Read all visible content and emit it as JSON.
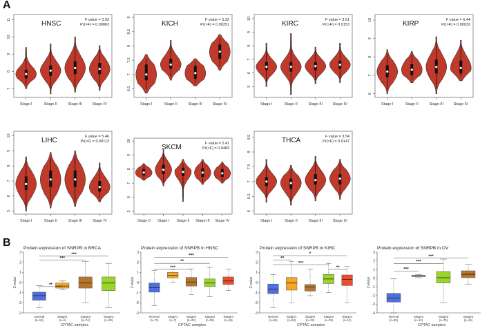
{
  "figure": {
    "label_a": "A",
    "label_b": "B"
  },
  "chart_data": [
    {
      "id": "hnsc",
      "type": "violin",
      "title": "HNSC",
      "f_text": "F value = 3.93",
      "p_text": "Pr(>F) = 0.00863",
      "categories": [
        "Stage I",
        "Stage II",
        "Stage III",
        "Stage IV"
      ],
      "ylim": [
        6.5,
        11.3
      ],
      "yticks": [
        7,
        8,
        9,
        10,
        11
      ],
      "color": "#c0392b",
      "violins": [
        {
          "median": 7.85,
          "q1": 7.6,
          "q3": 8.1,
          "min": 7.0,
          "max": 9.4
        },
        {
          "median": 8.05,
          "q1": 7.75,
          "q3": 8.35,
          "min": 6.7,
          "max": 9.6
        },
        {
          "median": 8.2,
          "q1": 7.85,
          "q3": 8.6,
          "min": 6.8,
          "max": 10.0
        },
        {
          "median": 8.15,
          "q1": 7.85,
          "q3": 8.5,
          "min": 6.9,
          "max": 9.5
        }
      ]
    },
    {
      "id": "kich",
      "type": "violin",
      "title": "KICH",
      "f_text": "F value = 5.32",
      "p_text": "Pr(>F) = 0.00251",
      "categories": [
        "Stage I",
        "Stage II",
        "Stage III",
        "Stage IV"
      ],
      "ylim": [
        6.2,
        9.1
      ],
      "yticks": [
        6.5,
        7.0,
        7.5,
        8.0,
        8.5,
        9.0
      ],
      "color": "#c0392b",
      "violins": [
        {
          "median": 7.0,
          "q1": 6.8,
          "q3": 7.35,
          "min": 6.35,
          "max": 7.7
        },
        {
          "median": 7.35,
          "q1": 7.2,
          "q3": 7.55,
          "min": 6.8,
          "max": 8.2
        },
        {
          "median": 7.05,
          "q1": 6.85,
          "q3": 7.3,
          "min": 6.6,
          "max": 7.55
        },
        {
          "median": 7.8,
          "q1": 7.55,
          "q3": 8.05,
          "min": 7.15,
          "max": 8.4
        }
      ]
    },
    {
      "id": "kirc",
      "type": "violin",
      "title": "KIRC",
      "f_text": "F value = 3.51",
      "p_text": "Pr(>F) = 0.0153",
      "categories": [
        "Stage I",
        "Stage II",
        "Stage III",
        "Stage IV"
      ],
      "ylim": [
        4.2,
        10.3
      ],
      "yticks": [
        5,
        6,
        7,
        8,
        9,
        10
      ],
      "color": "#c0392b",
      "violins": [
        {
          "median": 6.45,
          "q1": 6.2,
          "q3": 6.8,
          "min": 5.0,
          "max": 8.2
        },
        {
          "median": 6.45,
          "q1": 6.1,
          "q3": 6.8,
          "min": 4.4,
          "max": 8.9
        },
        {
          "median": 6.5,
          "q1": 6.2,
          "q3": 6.8,
          "min": 5.2,
          "max": 7.9
        },
        {
          "median": 6.6,
          "q1": 6.3,
          "q3": 6.9,
          "min": 5.3,
          "max": 8.2
        }
      ]
    },
    {
      "id": "kirp",
      "type": "violin",
      "title": "KIRP",
      "f_text": "F value = 6.44",
      "p_text": "Pr(>F) = 0.00032",
      "categories": [
        "Stage I",
        "Stage II",
        "Stage III",
        "Stage IV"
      ],
      "ylim": [
        5.8,
        10.3
      ],
      "yticks": [
        6,
        7,
        8,
        9,
        10
      ],
      "color": "#c0392b",
      "violins": [
        {
          "median": 7.2,
          "q1": 6.9,
          "q3": 7.55,
          "min": 6.0,
          "max": 8.4
        },
        {
          "median": 7.3,
          "q1": 7.0,
          "q3": 7.6,
          "min": 6.6,
          "max": 8.3
        },
        {
          "median": 7.45,
          "q1": 7.1,
          "q3": 7.85,
          "min": 6.0,
          "max": 9.1
        },
        {
          "median": 7.4,
          "q1": 7.1,
          "q3": 7.8,
          "min": 6.7,
          "max": 8.9
        }
      ]
    },
    {
      "id": "lihc",
      "type": "violin",
      "title": "LIHC",
      "f_text": "F value = 5.46",
      "p_text": "Pr(>F) = 0.00113",
      "categories": [
        "Stage I",
        "Stage II",
        "Stage III",
        "Stage IV"
      ],
      "ylim": [
        4.8,
        10.3
      ],
      "yticks": [
        5,
        6,
        7,
        8,
        9,
        10
      ],
      "color": "#c0392b",
      "violins": [
        {
          "median": 6.8,
          "q1": 6.4,
          "q3": 7.3,
          "min": 5.0,
          "max": 8.6
        },
        {
          "median": 7.1,
          "q1": 6.6,
          "q3": 7.7,
          "min": 5.2,
          "max": 8.9
        },
        {
          "median": 7.1,
          "q1": 6.6,
          "q3": 7.7,
          "min": 5.3,
          "max": 9.0
        },
        {
          "median": 6.6,
          "q1": 6.3,
          "q3": 7.0,
          "min": 5.6,
          "max": 8.2
        }
      ]
    },
    {
      "id": "skcm",
      "type": "violin",
      "title": "SKCM",
      "f_text": "F value = 2.41",
      "p_text": "Pr(>F) = 0.0483",
      "categories": [
        "Stage 0",
        "Stage I",
        "Stage II",
        "Stage III",
        "Stage IV"
      ],
      "ylim": [
        4.8,
        10.2
      ],
      "yticks": [
        5,
        6,
        7,
        8,
        9,
        10
      ],
      "color": "#c0392b",
      "violins": [
        {
          "median": 7.75,
          "q1": 7.55,
          "q3": 8.0,
          "min": 7.2,
          "max": 8.4
        },
        {
          "median": 7.95,
          "q1": 7.65,
          "q3": 8.3,
          "min": 6.8,
          "max": 9.4
        },
        {
          "median": 7.8,
          "q1": 7.5,
          "q3": 8.1,
          "min": 5.7,
          "max": 8.7
        },
        {
          "median": 7.75,
          "q1": 7.45,
          "q3": 8.05,
          "min": 6.9,
          "max": 8.7
        },
        {
          "median": 7.7,
          "q1": 7.45,
          "q3": 8.0,
          "min": 7.0,
          "max": 8.5
        }
      ]
    },
    {
      "id": "thca",
      "type": "violin",
      "title": "THCA",
      "f_text": "F value = 3.54",
      "p_text": "Pr(>F) = 0.0147",
      "categories": [
        "Stage I",
        "Stage II",
        "Stage III",
        "Stage IV"
      ],
      "ylim": [
        5.9,
        8.7
      ],
      "yticks": [
        6.0,
        6.5,
        7.0,
        7.5,
        8.0,
        8.5
      ],
      "color": "#c0392b",
      "violins": [
        {
          "median": 7.0,
          "q1": 6.85,
          "q3": 7.15,
          "min": 6.3,
          "max": 7.75
        },
        {
          "median": 6.95,
          "q1": 6.75,
          "q3": 7.1,
          "min": 6.2,
          "max": 7.55
        },
        {
          "median": 7.05,
          "q1": 6.9,
          "q3": 7.25,
          "min": 6.35,
          "max": 7.85
        },
        {
          "median": 7.1,
          "q1": 6.9,
          "q3": 7.25,
          "min": 6.4,
          "max": 7.75
        }
      ]
    },
    {
      "id": "brca",
      "type": "box",
      "title": "Protein expression of SNRPB in BRCA",
      "xlabel": "CPTAC samples",
      "ylabel": "Z-value",
      "ylim": [
        -3,
        3
      ],
      "yticks": [
        -3,
        -2,
        -1,
        0,
        1,
        2,
        3
      ],
      "categories": [
        "Normal",
        "Stage1",
        "Stage2",
        "Stage3"
      ],
      "ns": [
        "(n=18)",
        "(n=4)",
        "(n=74)",
        "(n=32)"
      ],
      "colors": [
        "#4f6fe0",
        "#f5a623",
        "#b5762c",
        "#9ad62a"
      ],
      "boxes": [
        {
          "min": -2.5,
          "q1": -1.75,
          "median": -1.3,
          "q3": -0.95,
          "max": -0.3
        },
        {
          "min": -0.7,
          "q1": -0.55,
          "median": -0.35,
          "q3": -0.05,
          "max": 0.15
        },
        {
          "min": -2.0,
          "q1": -0.55,
          "median": -0.05,
          "q3": 0.55,
          "max": 2.1
        },
        {
          "min": -2.5,
          "q1": -0.8,
          "median": -0.05,
          "q3": 0.55,
          "max": 1.9
        }
      ],
      "sig": [
        {
          "from": 0,
          "to": 1,
          "label": "**",
          "y": -0.4
        },
        {
          "from": 0,
          "to": 2,
          "label": "***",
          "y": 2.2
        },
        {
          "from": 0,
          "to": 3,
          "label": "***",
          "y": 2.6
        }
      ]
    },
    {
      "id": "hnsc_p",
      "type": "box",
      "title": "Protein expression of SNRPB in HNSC",
      "xlabel": "CPTAC samples",
      "ylabel": "Z-value",
      "ylim": [
        -3,
        3
      ],
      "yticks": [
        -3,
        -2,
        -1,
        0,
        1,
        2,
        3
      ],
      "categories": [
        "Normal",
        "Stage1",
        "Stage2",
        "Stage3",
        "Stage4"
      ],
      "ns": [
        "(n=71)",
        "(n=7)",
        "(n=20)",
        "(n=36)",
        "(n=46)"
      ],
      "colors": [
        "#4f6fe0",
        "#f5a623",
        "#b5762c",
        "#9ad62a",
        "#ef4c2a"
      ],
      "boxes": [
        {
          "min": -2.3,
          "q1": -0.95,
          "median": -0.5,
          "q3": -0.05,
          "max": 1.2
        },
        {
          "min": 0.0,
          "q1": 0.45,
          "median": 0.7,
          "q3": 1.0,
          "max": 1.3
        },
        {
          "min": -1.2,
          "q1": -0.35,
          "median": 0.05,
          "q3": 0.5,
          "max": 1.3
        },
        {
          "min": -1.4,
          "q1": -0.4,
          "median": -0.05,
          "q3": 0.35,
          "max": 1.5
        },
        {
          "min": -0.8,
          "q1": -0.2,
          "median": 0.15,
          "q3": 0.55,
          "max": 1.3
        }
      ],
      "sig": [
        {
          "from": 0,
          "to": 2,
          "label": "***",
          "y": 1.3
        },
        {
          "from": 0,
          "to": 3,
          "label": "**",
          "y": 1.9
        },
        {
          "from": 0,
          "to": 4,
          "label": "***",
          "y": 2.5
        }
      ]
    },
    {
      "id": "kirc_p",
      "type": "box",
      "title": "Protein expression of SNRPB in KIRC",
      "xlabel": "CPTAC samples",
      "ylabel": "Z-value",
      "ylim": [
        -3,
        3
      ],
      "yticks": [
        -3,
        -2,
        -1,
        0,
        1,
        2,
        3
      ],
      "categories": [
        "Normal",
        "Stage1",
        "Stage2",
        "Stage3",
        "Stage4"
      ],
      "ns": [
        "(n=84)",
        "(n=52)",
        "(n=13)",
        "(n=33)",
        "(n=12)"
      ],
      "colors": [
        "#4f6fe0",
        "#f5a623",
        "#b5762c",
        "#9ad62a",
        "#ef4c2a"
      ],
      "boxes": [
        {
          "min": -2.5,
          "q1": -1.1,
          "median": -0.65,
          "q3": -0.15,
          "max": 0.8
        },
        {
          "min": -2.0,
          "q1": -0.75,
          "median": -0.05,
          "q3": 0.5,
          "max": 2.1
        },
        {
          "min": -1.3,
          "q1": -0.85,
          "median": -0.45,
          "q3": -0.2,
          "max": 1.3
        },
        {
          "min": -1.0,
          "q1": -0.1,
          "median": 0.35,
          "q3": 0.8,
          "max": 1.9
        },
        {
          "min": -2.0,
          "q1": -0.3,
          "median": 0.3,
          "q3": 0.75,
          "max": 1.6
        }
      ],
      "sig": [
        {
          "from": 3,
          "to": 4,
          "label": "**",
          "y": 1.3
        },
        {
          "from": 0,
          "to": 3,
          "label": "***",
          "y": 1.75
        },
        {
          "from": 0,
          "to": 1,
          "label": "**",
          "y": 2.2
        },
        {
          "from": 0,
          "to": 4,
          "label": "*",
          "y": 2.65
        }
      ]
    },
    {
      "id": "ov_p",
      "type": "box",
      "title": "Protein expression of SNRPB in OV",
      "xlabel": "CPTAC samples",
      "ylabel": "Z-value",
      "ylim": [
        -4,
        3
      ],
      "yticks": [
        -4,
        -3,
        -2,
        -1,
        0,
        1,
        2,
        3
      ],
      "categories": [
        "Normal",
        "Stage1",
        "Stage3",
        "Stage4"
      ],
      "ns": [
        "(n=25)",
        "(n=12)",
        "(n=75)",
        "(n=16)"
      ],
      "colors": [
        "#4f6fe0",
        "#f5a623",
        "#9ad62a",
        "#b5762c"
      ],
      "boxes": [
        {
          "min": -4.0,
          "q1": -2.75,
          "median": -2.3,
          "q3": -1.75,
          "max": -0.05
        },
        {
          "min": 0.05,
          "q1": 0.18,
          "median": 0.25,
          "q3": 0.32,
          "max": 0.4
        },
        {
          "min": -2.8,
          "q1": -0.55,
          "median": 0.05,
          "q3": 0.75,
          "max": 2.2
        },
        {
          "min": -0.7,
          "q1": 0.05,
          "median": 0.45,
          "q3": 0.85,
          "max": 1.6
        }
      ],
      "sig": [
        {
          "from": 0,
          "to": 1,
          "label": "***",
          "y": 0.8
        },
        {
          "from": 0,
          "to": 2,
          "label": "***",
          "y": 1.7
        },
        {
          "from": 0,
          "to": 3,
          "label": "***",
          "y": 2.3
        }
      ]
    }
  ]
}
